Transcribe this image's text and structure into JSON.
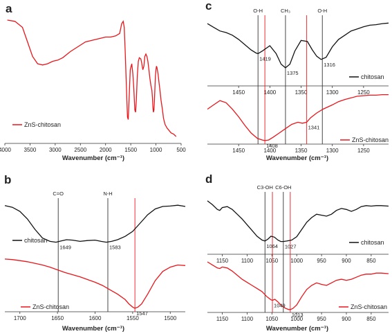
{
  "chart_data": [
    {
      "panel_label": "a",
      "type": "line",
      "xlabel": "Wavenumber (cm⁻¹)",
      "xlim": [
        4000,
        500
      ],
      "x_ticks": [
        4000,
        3500,
        3000,
        2500,
        2000,
        1500,
        1000,
        500
      ],
      "series": [
        {
          "name": "ZnS-chitosan",
          "color": "#e8161b",
          "x": [
            3950,
            3800,
            3650,
            3550,
            3450,
            3350,
            3250,
            3150,
            3050,
            2950,
            2850,
            2700,
            2550,
            2400,
            2300,
            2200,
            2100,
            2000,
            1900,
            1800,
            1720,
            1680,
            1650,
            1630,
            1610,
            1590,
            1565,
            1550,
            1530,
            1510,
            1480,
            1460,
            1440,
            1420,
            1405,
            1390,
            1370,
            1350,
            1330,
            1300,
            1280,
            1260,
            1240,
            1220,
            1200,
            1180,
            1160,
            1140,
            1120,
            1100,
            1080,
            1070,
            1060,
            1050,
            1040,
            1030,
            1020,
            1010,
            1000,
            990,
            980,
            960,
            940,
            920,
            900,
            870,
            850,
            820,
            780,
            740,
            700,
            650,
            600
          ],
          "y": [
            0.96,
            0.95,
            0.9,
            0.78,
            0.66,
            0.6,
            0.59,
            0.6,
            0.62,
            0.63,
            0.65,
            0.7,
            0.74,
            0.78,
            0.79,
            0.8,
            0.81,
            0.82,
            0.82,
            0.83,
            0.85,
            0.93,
            0.95,
            0.9,
            0.7,
            0.45,
            0.16,
            0.14,
            0.35,
            0.55,
            0.6,
            0.52,
            0.4,
            0.22,
            0.2,
            0.3,
            0.5,
            0.62,
            0.65,
            0.64,
            0.6,
            0.55,
            0.58,
            0.66,
            0.68,
            0.66,
            0.62,
            0.55,
            0.48,
            0.42,
            0.38,
            0.32,
            0.24,
            0.2,
            0.22,
            0.3,
            0.4,
            0.5,
            0.55,
            0.58,
            0.57,
            0.52,
            0.45,
            0.38,
            0.3,
            0.22,
            0.15,
            0.1,
            0.07,
            0.05,
            0.03,
            0.02,
            0.0
          ]
        }
      ]
    },
    {
      "panel_label": "b",
      "type": "line",
      "xlabel": "Wavenumber (cm⁻¹)",
      "xlim": [
        1720,
        1480
      ],
      "x_ticks": [
        1700,
        1650,
        1600,
        1550,
        1500
      ],
      "vlines": [
        {
          "x": 1649,
          "color": "#333333",
          "label": "C=O"
        },
        {
          "x": 1583,
          "color": "#333333",
          "label": "N-H"
        },
        {
          "x": 1547,
          "color": "#e8161b",
          "label": ""
        }
      ],
      "annotations": [
        {
          "text": "1649",
          "x": 1649,
          "series": "chitosan",
          "color": "#222222"
        },
        {
          "text": "1583",
          "x": 1583,
          "series": "chitosan",
          "color": "#222222"
        },
        {
          "text": "1547",
          "x": 1547,
          "series": "ZnS-chitosan",
          "color": "#e8161b"
        }
      ],
      "series": [
        {
          "name": "chitosan",
          "color": "#111111",
          "x": [
            1720,
            1710,
            1700,
            1690,
            1680,
            1670,
            1660,
            1652,
            1645,
            1638,
            1630,
            1620,
            1610,
            1600,
            1592,
            1585,
            1578,
            1570,
            1560,
            1550,
            1540,
            1530,
            1520,
            1510,
            1500,
            1490,
            1480
          ],
          "y": [
            0.92,
            0.88,
            0.78,
            0.6,
            0.35,
            0.14,
            0.06,
            0.04,
            0.07,
            0.1,
            0.09,
            0.06,
            0.08,
            0.09,
            0.06,
            0.04,
            0.06,
            0.1,
            0.18,
            0.3,
            0.5,
            0.7,
            0.84,
            0.9,
            0.91,
            0.93,
            0.9
          ]
        },
        {
          "name": "ZnS-chitosan",
          "color": "#e8161b",
          "x": [
            1720,
            1710,
            1700,
            1690,
            1680,
            1670,
            1660,
            1650,
            1640,
            1630,
            1620,
            1610,
            1600,
            1590,
            1580,
            1570,
            1560,
            1555,
            1550,
            1547,
            1543,
            1538,
            1530,
            1520,
            1510,
            1500,
            1490,
            1480
          ],
          "y": [
            0.95,
            0.94,
            0.92,
            0.9,
            0.87,
            0.84,
            0.8,
            0.75,
            0.7,
            0.66,
            0.62,
            0.57,
            0.52,
            0.46,
            0.38,
            0.3,
            0.2,
            0.12,
            0.06,
            0.04,
            0.06,
            0.12,
            0.3,
            0.55,
            0.72,
            0.8,
            0.84,
            0.83
          ]
        }
      ]
    },
    {
      "panel_label": "c",
      "type": "line",
      "xlabel": "Wavenumber (cm⁻¹)",
      "xlim": [
        1500,
        1210
      ],
      "x_ticks": [
        1450,
        1400,
        1350,
        1300,
        1250
      ],
      "vlines": [
        {
          "x": 1419,
          "color": "#333333",
          "label": "O-H"
        },
        {
          "x": 1375,
          "color": "#333333",
          "label": "CH3"
        },
        {
          "x": 1316,
          "color": "#333333",
          "label": "O-H"
        },
        {
          "x": 1408,
          "color": "#e8161b",
          "label": ""
        },
        {
          "x": 1341,
          "color": "#e8161b",
          "label": ""
        }
      ],
      "annotations": [
        {
          "text": "1419",
          "x": 1419,
          "series": "chitosan",
          "color": "#222222"
        },
        {
          "text": "1375",
          "x": 1375,
          "series": "chitosan",
          "color": "#222222"
        },
        {
          "text": "1316",
          "x": 1316,
          "series": "chitosan",
          "color": "#222222"
        },
        {
          "text": "1408",
          "x": 1408,
          "series": "ZnS-chitosan",
          "color": "#e8161b"
        },
        {
          "text": "1341",
          "x": 1341,
          "series": "ZnS-chitosan",
          "color": "#e8161b"
        }
      ],
      "series": [
        {
          "name": "chitosan",
          "color": "#111111",
          "x": [
            1500,
            1490,
            1480,
            1470,
            1460,
            1450,
            1440,
            1430,
            1422,
            1419,
            1412,
            1400,
            1390,
            1382,
            1375,
            1368,
            1360,
            1350,
            1340,
            1332,
            1325,
            1318,
            1310,
            1300,
            1290,
            1280,
            1270,
            1260,
            1250,
            1240,
            1230,
            1220,
            1210
          ],
          "y": [
            0.92,
            0.85,
            0.78,
            0.75,
            0.7,
            0.62,
            0.52,
            0.42,
            0.36,
            0.35,
            0.4,
            0.5,
            0.35,
            0.15,
            0.08,
            0.15,
            0.4,
            0.6,
            0.58,
            0.42,
            0.3,
            0.24,
            0.28,
            0.48,
            0.62,
            0.7,
            0.78,
            0.82,
            0.86,
            0.89,
            0.9,
            0.92,
            0.93
          ]
        },
        {
          "name": "ZnS-chitosan",
          "color": "#e8161b",
          "x": [
            1500,
            1490,
            1480,
            1470,
            1460,
            1450,
            1440,
            1430,
            1420,
            1412,
            1408,
            1402,
            1395,
            1385,
            1375,
            1365,
            1355,
            1348,
            1341,
            1335,
            1325,
            1315,
            1300,
            1290,
            1280,
            1270,
            1260,
            1250,
            1240,
            1230,
            1220,
            1210
          ],
          "y": [
            0.62,
            0.7,
            0.78,
            0.74,
            0.62,
            0.48,
            0.32,
            0.18,
            0.08,
            0.05,
            0.04,
            0.05,
            0.1,
            0.18,
            0.26,
            0.34,
            0.38,
            0.36,
            0.38,
            0.46,
            0.55,
            0.62,
            0.7,
            0.76,
            0.8,
            0.83,
            0.86,
            0.87,
            0.88,
            0.88,
            0.89,
            0.89
          ]
        }
      ]
    },
    {
      "panel_label": "d",
      "type": "line",
      "xlabel": "Wavenumber (cm⁻¹)",
      "xlim": [
        1180,
        815
      ],
      "x_ticks": [
        1150,
        1100,
        1050,
        1000,
        950,
        900,
        850
      ],
      "vlines": [
        {
          "x": 1064,
          "color": "#333333",
          "label": "C3-OH"
        },
        {
          "x": 1027,
          "color": "#333333",
          "label": "C6-OH"
        },
        {
          "x": 1049,
          "color": "#e8161b",
          "label": ""
        },
        {
          "x": 1013,
          "color": "#e8161b",
          "label": ""
        }
      ],
      "annotations": [
        {
          "text": "1064",
          "x": 1064,
          "series": "chitosan",
          "color": "#222222"
        },
        {
          "text": "1027",
          "x": 1027,
          "series": "chitosan",
          "color": "#222222"
        },
        {
          "text": "1049",
          "x": 1049,
          "series": "ZnS-chitosan",
          "color": "#e8161b"
        },
        {
          "text": "1013",
          "x": 1013,
          "series": "ZnS-chitosan",
          "color": "#e8161b"
        }
      ],
      "series": [
        {
          "name": "chitosan",
          "color": "#111111",
          "x": [
            1180,
            1170,
            1160,
            1155,
            1150,
            1140,
            1130,
            1120,
            1110,
            1100,
            1090,
            1080,
            1070,
            1064,
            1058,
            1052,
            1045,
            1038,
            1032,
            1027,
            1020,
            1010,
            1000,
            990,
            980,
            970,
            960,
            950,
            940,
            930,
            920,
            910,
            900,
            890,
            880,
            870,
            860,
            850,
            840,
            830,
            815
          ],
          "y": [
            0.9,
            0.82,
            0.72,
            0.7,
            0.76,
            0.78,
            0.72,
            0.62,
            0.52,
            0.4,
            0.28,
            0.16,
            0.08,
            0.06,
            0.1,
            0.16,
            0.14,
            0.08,
            0.05,
            0.05,
            0.06,
            0.08,
            0.15,
            0.3,
            0.45,
            0.55,
            0.62,
            0.6,
            0.58,
            0.62,
            0.7,
            0.74,
            0.72,
            0.68,
            0.72,
            0.78,
            0.8,
            0.79,
            0.8,
            0.8,
            0.79
          ]
        },
        {
          "name": "ZnS-chitosan",
          "color": "#e8161b",
          "x": [
            1180,
            1170,
            1160,
            1155,
            1150,
            1140,
            1130,
            1120,
            1110,
            1100,
            1090,
            1080,
            1070,
            1060,
            1052,
            1049,
            1044,
            1038,
            1030,
            1022,
            1016,
            1013,
            1008,
            1000,
            990,
            980,
            970,
            960,
            950,
            940,
            930,
            920,
            910,
            900,
            890,
            880,
            870,
            860,
            850,
            840,
            830,
            815
          ],
          "y": [
            0.96,
            0.9,
            0.84,
            0.83,
            0.86,
            0.84,
            0.78,
            0.7,
            0.62,
            0.56,
            0.5,
            0.44,
            0.38,
            0.28,
            0.22,
            0.21,
            0.23,
            0.18,
            0.1,
            0.05,
            0.03,
            0.03,
            0.05,
            0.12,
            0.28,
            0.42,
            0.5,
            0.55,
            0.52,
            0.5,
            0.55,
            0.6,
            0.62,
            0.6,
            0.62,
            0.66,
            0.7,
            0.72,
            0.72,
            0.74,
            0.74,
            0.73
          ]
        }
      ]
    }
  ]
}
